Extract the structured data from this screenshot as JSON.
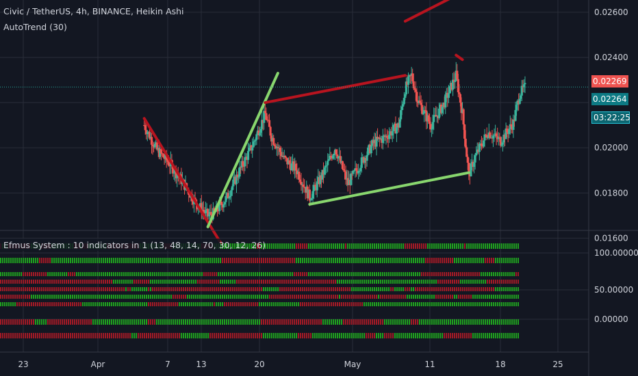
{
  "chart_data": [
    {
      "type": "candlestick",
      "title": "Civic / TetherUS, 4h, BINANCE, Heikin Ashi",
      "indicator": "AutoTrend (30)",
      "y_ticks": [
        "0.02600",
        "0.02400",
        "0.02200",
        "0.02000",
        "0.01800",
        "0.01600"
      ],
      "y_range": [
        0.0158,
        0.0266
      ],
      "x_ticks": [
        "23",
        "Apr",
        "7",
        "13",
        "20",
        "May",
        "11",
        "18",
        "25"
      ],
      "last_price": "0.02269",
      "prev_close": "0.02264",
      "countdown": "03:22:25",
      "price_path": [
        [
          "Mar 21",
          0.021
        ],
        [
          "Mar 23",
          0.0199
        ],
        [
          "Mar 25",
          0.0193
        ],
        [
          "Mar 27",
          0.0185
        ],
        [
          "Mar 29",
          0.0176
        ],
        [
          "Mar 31",
          0.017
        ],
        [
          "Apr 1",
          0.0171
        ],
        [
          "Apr 3",
          0.0178
        ],
        [
          "Apr 5",
          0.019
        ],
        [
          "Apr 7",
          0.0201
        ],
        [
          "Apr 9",
          0.0215
        ],
        [
          "Apr 10",
          0.0205
        ],
        [
          "Apr 12",
          0.0195
        ],
        [
          "Apr 14",
          0.019
        ],
        [
          "Apr 16",
          0.0178
        ],
        [
          "Apr 18",
          0.0188
        ],
        [
          "Apr 20",
          0.02
        ],
        [
          "Apr 22",
          0.0184
        ],
        [
          "Apr 24",
          0.0193
        ],
        [
          "Apr 26",
          0.0202
        ],
        [
          "Apr 28",
          0.0205
        ],
        [
          "Apr 30",
          0.021
        ],
        [
          "May 1",
          0.0226
        ],
        [
          "May 2",
          0.0232
        ],
        [
          "May 3",
          0.0221
        ],
        [
          "May 5",
          0.021
        ],
        [
          "May 7",
          0.0219
        ],
        [
          "May 9",
          0.0232
        ],
        [
          "May 10",
          0.0215
        ],
        [
          "May 11",
          0.0188
        ],
        [
          "May 12",
          0.0196
        ],
        [
          "May 14",
          0.0207
        ],
        [
          "May 16",
          0.0203
        ],
        [
          "May 18",
          0.0211
        ],
        [
          "May 19",
          0.0224
        ],
        [
          "May 20",
          0.0227
        ]
      ],
      "trend_lines": [
        {
          "color": "#b8141f",
          "from": [
            "Mar 21",
            0.0213
          ],
          "to": [
            "Apr 2",
            0.0158
          ]
        },
        {
          "color": "#88d66e",
          "from": [
            "Mar 31",
            0.0165
          ],
          "to": [
            "Apr 11",
            0.0233
          ]
        },
        {
          "color": "#b8141f",
          "from": [
            "Apr 9",
            0.022
          ],
          "to": [
            "May 1",
            0.0232
          ]
        },
        {
          "color": "#88d66e",
          "from": [
            "Apr 16",
            0.0175
          ],
          "to": [
            "May 11",
            0.0189
          ]
        },
        {
          "color": "#b8141f",
          "from": [
            "May 1",
            0.0256
          ],
          "to": [
            "May 8",
            0.0266
          ]
        },
        {
          "color": "#b8141f",
          "from": [
            "May 9",
            0.0241
          ],
          "to": [
            "May 10",
            0.0239
          ]
        }
      ]
    },
    {
      "type": "heatmap",
      "title": "Efmus System : 10 indicators in 1 (13, 48, 14, 70, 30, 12, 26)",
      "y_ticks": [
        "100.00000",
        "50.00000",
        "0.00000"
      ],
      "rows": 10,
      "colors": {
        "bull": "#1fa01f",
        "bear": "#a01a26"
      }
    }
  ],
  "colors": {
    "up": "#39b39b",
    "down": "#ef5350",
    "background": "#131722",
    "grid": "#2a2e39",
    "axis_text": "#d1d4dc",
    "last_price_bg": "#ef5350",
    "countdown_bg": "#26c6da"
  }
}
